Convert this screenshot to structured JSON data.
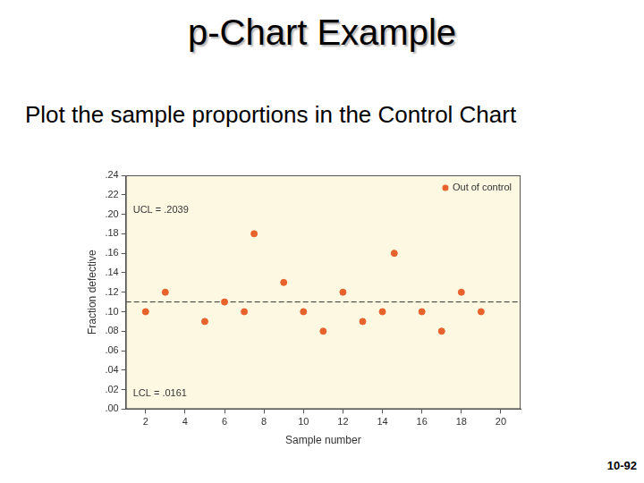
{
  "title": "p-Chart Example",
  "subtitle": "Plot the sample proportions in the Control Chart",
  "page_number": "10-92",
  "chart_data": {
    "type": "scatter",
    "x_label": "Sample number",
    "y_label": "Fraction defective",
    "x": [
      2,
      3,
      5,
      6,
      7,
      7.5,
      9,
      10,
      11,
      12,
      13,
      14,
      14.6,
      16,
      17,
      18,
      19
    ],
    "series": [
      {
        "name": "Out of control",
        "color": "#e8622c",
        "marker": "circle",
        "values": [
          0.1,
          0.12,
          0.09,
          0.11,
          0.1,
          0.18,
          0.13,
          0.1,
          0.08,
          0.12,
          0.09,
          0.1,
          0.16,
          0.1,
          0.08,
          0.12,
          0.1
        ]
      }
    ],
    "xlim": [
      1,
      21
    ],
    "xticks": [
      2,
      4,
      6,
      8,
      10,
      12,
      14,
      16,
      18,
      20
    ],
    "ylim": [
      0,
      0.24
    ],
    "yticks": [
      {
        "value": 0,
        "label": ".00"
      },
      {
        "value": 0.02,
        "label": ".02"
      },
      {
        "value": 0.04,
        "label": ".04"
      },
      {
        "value": 0.06,
        "label": ".06"
      },
      {
        "value": 0.08,
        "label": ".08"
      },
      {
        "value": 0.1,
        "label": ".10"
      },
      {
        "value": 0.12,
        "label": ".12"
      },
      {
        "value": 0.14,
        "label": ".14"
      },
      {
        "value": 0.16,
        "label": ".16"
      },
      {
        "value": 0.18,
        "label": ".18"
      },
      {
        "value": 0.2,
        "label": ".20"
      },
      {
        "value": 0.22,
        "label": ".22"
      },
      {
        "value": 0.24,
        "label": ".24"
      }
    ],
    "center_line": 0.11,
    "control_limits": [
      {
        "label": "UCL = .2039",
        "value": 0.2039
      },
      {
        "label": "LCL = .0161",
        "value": 0.0161
      }
    ],
    "legend": "upper right",
    "grid": false
  }
}
